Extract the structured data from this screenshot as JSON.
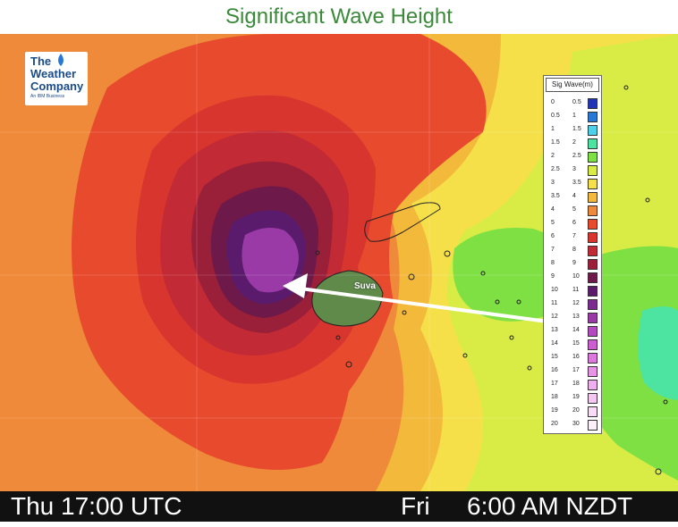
{
  "title": "Significant Wave Height",
  "logo": {
    "line1": "The",
    "line2": "Weather",
    "line3": "Company",
    "line4": "An IBM Business"
  },
  "legend": {
    "title": "Sig Wave(m)",
    "rows": [
      {
        "lo": "0",
        "hi": "0.5",
        "color": "#2233b5"
      },
      {
        "lo": "0.5",
        "hi": "1",
        "color": "#2a78d6"
      },
      {
        "lo": "1",
        "hi": "1.5",
        "color": "#4dd0e8"
      },
      {
        "lo": "1.5",
        "hi": "2",
        "color": "#4de3a0"
      },
      {
        "lo": "2",
        "hi": "2.5",
        "color": "#7ee043"
      },
      {
        "lo": "2.5",
        "hi": "3",
        "color": "#d8ec45"
      },
      {
        "lo": "3",
        "hi": "3.5",
        "color": "#f5e04a"
      },
      {
        "lo": "3.5",
        "hi": "4",
        "color": "#f3b93b"
      },
      {
        "lo": "4",
        "hi": "5",
        "color": "#ee8a3a"
      },
      {
        "lo": "5",
        "hi": "6",
        "color": "#e84a2e"
      },
      {
        "lo": "6",
        "hi": "7",
        "color": "#d8352e"
      },
      {
        "lo": "7",
        "hi": "8",
        "color": "#c22a36"
      },
      {
        "lo": "8",
        "hi": "9",
        "color": "#9a1f38"
      },
      {
        "lo": "9",
        "hi": "10",
        "color": "#6d1a4b"
      },
      {
        "lo": "10",
        "hi": "11",
        "color": "#5a1b6c"
      },
      {
        "lo": "11",
        "hi": "12",
        "color": "#7b2a8e"
      },
      {
        "lo": "12",
        "hi": "13",
        "color": "#9a3aa6"
      },
      {
        "lo": "13",
        "hi": "14",
        "color": "#b54bc0"
      },
      {
        "lo": "14",
        "hi": "15",
        "color": "#cc5ed2"
      },
      {
        "lo": "15",
        "hi": "16",
        "color": "#dd78df"
      },
      {
        "lo": "16",
        "hi": "17",
        "color": "#e894e7"
      },
      {
        "lo": "17",
        "hi": "18",
        "color": "#efaeee"
      },
      {
        "lo": "18",
        "hi": "19",
        "color": "#f4c6f2"
      },
      {
        "lo": "19",
        "hi": "20",
        "color": "#f8dcf7"
      },
      {
        "lo": "20",
        "hi": "30",
        "color": "#fcf0fb"
      }
    ]
  },
  "map": {
    "city_label": "Suva",
    "colors": {
      "orange": "#ee8a3a",
      "red": "#e84a2e",
      "dark_red": "#c22a36",
      "maroon": "#8e1f3e",
      "plum": "#6d1a4b",
      "purple": "#7b2a8e",
      "magenta": "#9a3aa6",
      "yellow": "#f5e04a",
      "light_yellow": "#d8ec45",
      "green": "#7ee043",
      "aqua": "#4de3a0",
      "gold": "#f3b93b"
    }
  },
  "footer": {
    "left": "Thu 17:00 UTC",
    "day": "Fri",
    "right": "6:00 AM NZDT"
  }
}
